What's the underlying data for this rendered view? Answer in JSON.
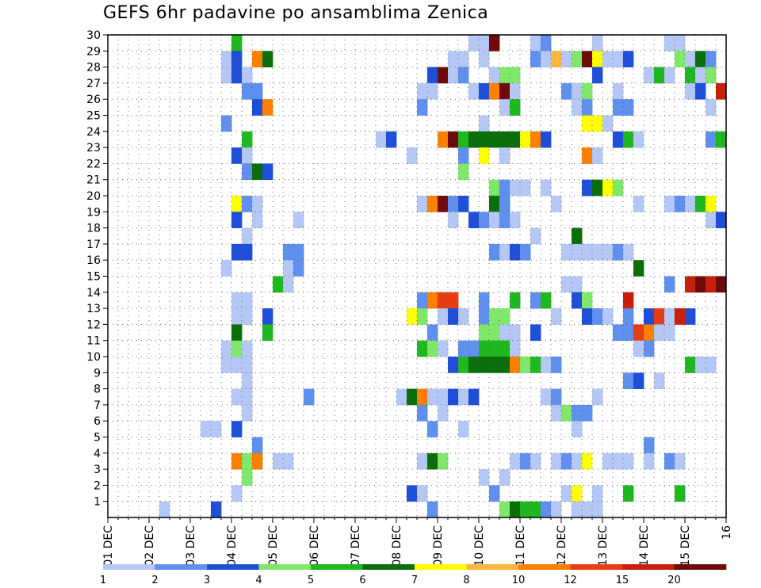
{
  "chart_data": {
    "type": "heatmap",
    "title": "GEFS 6hr padavine po ansamblima Zenica",
    "xlabel": "",
    "ylabel": "",
    "x_ticks": [
      "01 DEC",
      "02 DEC",
      "03 DEC",
      "04 DEC",
      "05 DEC",
      "06 DEC",
      "07 DEC",
      "08 DEC",
      "09 DEC",
      "10 DEC",
      "11 DEC",
      "12 DEC",
      "13 DEC",
      "14 DEC",
      "15 DEC",
      "16"
    ],
    "y_ticks": [
      "1",
      "2",
      "3",
      "4",
      "5",
      "6",
      "7",
      "8",
      "9",
      "10",
      "11",
      "12",
      "13",
      "14",
      "15",
      "16",
      "17",
      "18",
      "19",
      "20",
      "21",
      "22",
      "23",
      "24",
      "25",
      "26",
      "27",
      "28",
      "29",
      "30"
    ],
    "xlim": [
      0,
      60
    ],
    "ylim": [
      0,
      30
    ],
    "time_step_hours": 6,
    "grid": true,
    "legend": {
      "placement": "bottom",
      "labels": [
        "1",
        "2",
        "3",
        "4",
        "5",
        "6",
        "7",
        "8",
        "10",
        "12",
        "15",
        "20"
      ],
      "colors": [
        "#b4c7f5",
        "#6090ee",
        "#1f4fd8",
        "#7fe86a",
        "#1fb81f",
        "#0a6e0a",
        "#ffff00",
        "#ffb43c",
        "#ff7f00",
        "#e83c14",
        "#c81e0a",
        "#6e0a0a"
      ]
    },
    "cells": [
      [
        13,
        30,
        5
      ],
      [
        36,
        30,
        1
      ],
      [
        37,
        30,
        1
      ],
      [
        38,
        30,
        12
      ],
      [
        42,
        30,
        1
      ],
      [
        43,
        30,
        2
      ],
      [
        48,
        30,
        1
      ],
      [
        55,
        30,
        1
      ],
      [
        56,
        30,
        1
      ],
      [
        12,
        29,
        1
      ],
      [
        13,
        29,
        3
      ],
      [
        15,
        29,
        9
      ],
      [
        16,
        29,
        6
      ],
      [
        34,
        29,
        1
      ],
      [
        35,
        29,
        1
      ],
      [
        37,
        29,
        1
      ],
      [
        42,
        29,
        2
      ],
      [
        43,
        29,
        1
      ],
      [
        44,
        29,
        8
      ],
      [
        45,
        29,
        1
      ],
      [
        46,
        29,
        4
      ],
      [
        47,
        29,
        12
      ],
      [
        48,
        29,
        7
      ],
      [
        49,
        29,
        1
      ],
      [
        50,
        29,
        1
      ],
      [
        51,
        29,
        3
      ],
      [
        56,
        29,
        4
      ],
      [
        57,
        29,
        1
      ],
      [
        58,
        29,
        6
      ],
      [
        59,
        29,
        2
      ],
      [
        12,
        28,
        1
      ],
      [
        13,
        28,
        3
      ],
      [
        14,
        28,
        1
      ],
      [
        32,
        28,
        3
      ],
      [
        33,
        28,
        12
      ],
      [
        34,
        28,
        1
      ],
      [
        35,
        28,
        2
      ],
      [
        38,
        28,
        1
      ],
      [
        39,
        28,
        4
      ],
      [
        40,
        28,
        4
      ],
      [
        48,
        28,
        3
      ],
      [
        53,
        28,
        1
      ],
      [
        54,
        28,
        5
      ],
      [
        55,
        28,
        1
      ],
      [
        57,
        28,
        5
      ],
      [
        58,
        28,
        1
      ],
      [
        59,
        28,
        4
      ],
      [
        14,
        27,
        2
      ],
      [
        15,
        27,
        2
      ],
      [
        31,
        27,
        1
      ],
      [
        32,
        27,
        1
      ],
      [
        36,
        27,
        1
      ],
      [
        37,
        27,
        3
      ],
      [
        38,
        27,
        9
      ],
      [
        39,
        27,
        12
      ],
      [
        40,
        27,
        1
      ],
      [
        45,
        27,
        2
      ],
      [
        46,
        27,
        1
      ],
      [
        47,
        27,
        4
      ],
      [
        50,
        27,
        1
      ],
      [
        57,
        27,
        1
      ],
      [
        58,
        27,
        3
      ],
      [
        60,
        27,
        11
      ],
      [
        15,
        26,
        3
      ],
      [
        16,
        26,
        9
      ],
      [
        31,
        26,
        2
      ],
      [
        39,
        26,
        1
      ],
      [
        40,
        26,
        5
      ],
      [
        46,
        26,
        1
      ],
      [
        47,
        26,
        2
      ],
      [
        50,
        26,
        2
      ],
      [
        51,
        26,
        2
      ],
      [
        59,
        26,
        1
      ],
      [
        12,
        25,
        2
      ],
      [
        37,
        25,
        1
      ],
      [
        47,
        25,
        7
      ],
      [
        48,
        25,
        7
      ],
      [
        49,
        25,
        1
      ],
      [
        14,
        24,
        5
      ],
      [
        27,
        24,
        1
      ],
      [
        28,
        24,
        3
      ],
      [
        33,
        24,
        9
      ],
      [
        34,
        24,
        12
      ],
      [
        35,
        24,
        5
      ],
      [
        36,
        24,
        6
      ],
      [
        37,
        24,
        6
      ],
      [
        38,
        24,
        6
      ],
      [
        39,
        24,
        6
      ],
      [
        40,
        24,
        6
      ],
      [
        41,
        24,
        7
      ],
      [
        42,
        24,
        9
      ],
      [
        43,
        24,
        3
      ],
      [
        50,
        24,
        3
      ],
      [
        51,
        24,
        5
      ],
      [
        52,
        24,
        1
      ],
      [
        59,
        24,
        2
      ],
      [
        60,
        24,
        5
      ],
      [
        13,
        23,
        3
      ],
      [
        14,
        23,
        1
      ],
      [
        30,
        23,
        1
      ],
      [
        35,
        23,
        2
      ],
      [
        37,
        23,
        7
      ],
      [
        39,
        23,
        1
      ],
      [
        47,
        23,
        9
      ],
      [
        48,
        23,
        1
      ],
      [
        14,
        22,
        2
      ],
      [
        15,
        22,
        6
      ],
      [
        16,
        22,
        3
      ],
      [
        35,
        22,
        4
      ],
      [
        38,
        21,
        4
      ],
      [
        39,
        21,
        2
      ],
      [
        40,
        21,
        1
      ],
      [
        41,
        21,
        1
      ],
      [
        43,
        21,
        1
      ],
      [
        47,
        21,
        3
      ],
      [
        48,
        21,
        6
      ],
      [
        49,
        21,
        7
      ],
      [
        50,
        21,
        4
      ],
      [
        13,
        20,
        7
      ],
      [
        14,
        20,
        2
      ],
      [
        15,
        20,
        1
      ],
      [
        31,
        20,
        1
      ],
      [
        32,
        20,
        9
      ],
      [
        33,
        20,
        12
      ],
      [
        34,
        20,
        2
      ],
      [
        35,
        20,
        3
      ],
      [
        38,
        20,
        6
      ],
      [
        39,
        20,
        2
      ],
      [
        44,
        20,
        1
      ],
      [
        52,
        20,
        1
      ],
      [
        55,
        20,
        1
      ],
      [
        56,
        20,
        2
      ],
      [
        57,
        20,
        1
      ],
      [
        58,
        20,
        5
      ],
      [
        59,
        20,
        7
      ],
      [
        13,
        19,
        3
      ],
      [
        15,
        19,
        1
      ],
      [
        19,
        19,
        1
      ],
      [
        34,
        19,
        1
      ],
      [
        36,
        19,
        3
      ],
      [
        37,
        19,
        2
      ],
      [
        38,
        19,
        1
      ],
      [
        39,
        19,
        2
      ],
      [
        40,
        19,
        1
      ],
      [
        59,
        19,
        1
      ],
      [
        60,
        19,
        3
      ],
      [
        14,
        18,
        1
      ],
      [
        42,
        18,
        1
      ],
      [
        46,
        18,
        6
      ],
      [
        13,
        17,
        3
      ],
      [
        14,
        17,
        3
      ],
      [
        18,
        17,
        2
      ],
      [
        19,
        17,
        2
      ],
      [
        38,
        17,
        2
      ],
      [
        39,
        17,
        1
      ],
      [
        40,
        17,
        3
      ],
      [
        41,
        17,
        2
      ],
      [
        45,
        17,
        1
      ],
      [
        46,
        17,
        1
      ],
      [
        47,
        17,
        1
      ],
      [
        48,
        17,
        1
      ],
      [
        49,
        17,
        1
      ],
      [
        50,
        17,
        2
      ],
      [
        51,
        17,
        1
      ],
      [
        12,
        16,
        1
      ],
      [
        18,
        16,
        1
      ],
      [
        19,
        16,
        2
      ],
      [
        52,
        16,
        6
      ],
      [
        17,
        15,
        5
      ],
      [
        18,
        15,
        1
      ],
      [
        45,
        15,
        1
      ],
      [
        46,
        15,
        1
      ],
      [
        55,
        15,
        2
      ],
      [
        57,
        15,
        11
      ],
      [
        58,
        15,
        12
      ],
      [
        59,
        15,
        11
      ],
      [
        60,
        15,
        12
      ],
      [
        13,
        14,
        1
      ],
      [
        14,
        14,
        1
      ],
      [
        31,
        14,
        2
      ],
      [
        32,
        14,
        9
      ],
      [
        33,
        14,
        10
      ],
      [
        34,
        14,
        10
      ],
      [
        37,
        14,
        2
      ],
      [
        40,
        14,
        5
      ],
      [
        42,
        14,
        2
      ],
      [
        43,
        14,
        5
      ],
      [
        46,
        14,
        3
      ],
      [
        47,
        14,
        4
      ],
      [
        51,
        14,
        11
      ],
      [
        13,
        13,
        1
      ],
      [
        14,
        13,
        1
      ],
      [
        16,
        13,
        3
      ],
      [
        30,
        13,
        7
      ],
      [
        31,
        13,
        4
      ],
      [
        33,
        13,
        1
      ],
      [
        34,
        13,
        3
      ],
      [
        35,
        13,
        1
      ],
      [
        37,
        13,
        2
      ],
      [
        38,
        13,
        4
      ],
      [
        39,
        13,
        4
      ],
      [
        44,
        13,
        1
      ],
      [
        47,
        13,
        3
      ],
      [
        48,
        13,
        2
      ],
      [
        49,
        13,
        1
      ],
      [
        51,
        13,
        2
      ],
      [
        53,
        13,
        3
      ],
      [
        54,
        13,
        10
      ],
      [
        55,
        13,
        1
      ],
      [
        56,
        13,
        11
      ],
      [
        57,
        13,
        3
      ],
      [
        13,
        12,
        6
      ],
      [
        16,
        12,
        5
      ],
      [
        32,
        12,
        2
      ],
      [
        37,
        12,
        4
      ],
      [
        38,
        12,
        4
      ],
      [
        39,
        12,
        1
      ],
      [
        40,
        12,
        1
      ],
      [
        42,
        12,
        3
      ],
      [
        50,
        12,
        2
      ],
      [
        51,
        12,
        2
      ],
      [
        52,
        12,
        10
      ],
      [
        53,
        12,
        9
      ],
      [
        54,
        12,
        1
      ],
      [
        55,
        12,
        1
      ],
      [
        12,
        11,
        1
      ],
      [
        13,
        11,
        4
      ],
      [
        14,
        11,
        1
      ],
      [
        31,
        11,
        5
      ],
      [
        32,
        11,
        4
      ],
      [
        33,
        11,
        1
      ],
      [
        35,
        11,
        2
      ],
      [
        36,
        11,
        2
      ],
      [
        37,
        11,
        5
      ],
      [
        38,
        11,
        5
      ],
      [
        39,
        11,
        5
      ],
      [
        40,
        11,
        1
      ],
      [
        52,
        11,
        1
      ],
      [
        53,
        11,
        2
      ],
      [
        12,
        10,
        1
      ],
      [
        13,
        10,
        1
      ],
      [
        14,
        10,
        1
      ],
      [
        34,
        10,
        3
      ],
      [
        35,
        10,
        5
      ],
      [
        36,
        10,
        6
      ],
      [
        37,
        10,
        6
      ],
      [
        38,
        10,
        6
      ],
      [
        39,
        10,
        6
      ],
      [
        40,
        10,
        9
      ],
      [
        41,
        10,
        4
      ],
      [
        42,
        10,
        5
      ],
      [
        43,
        10,
        1
      ],
      [
        44,
        10,
        2
      ],
      [
        57,
        10,
        5
      ],
      [
        58,
        10,
        1
      ],
      [
        59,
        10,
        1
      ],
      [
        14,
        9,
        1
      ],
      [
        51,
        9,
        2
      ],
      [
        52,
        9,
        3
      ],
      [
        54,
        9,
        1
      ],
      [
        13,
        8,
        1
      ],
      [
        14,
        8,
        1
      ],
      [
        20,
        8,
        2
      ],
      [
        29,
        8,
        1
      ],
      [
        30,
        8,
        6
      ],
      [
        31,
        8,
        9
      ],
      [
        32,
        8,
        1
      ],
      [
        33,
        8,
        1
      ],
      [
        34,
        8,
        3
      ],
      [
        35,
        8,
        1
      ],
      [
        36,
        8,
        3
      ],
      [
        43,
        8,
        1
      ],
      [
        44,
        8,
        2
      ],
      [
        48,
        8,
        1
      ],
      [
        14,
        7,
        1
      ],
      [
        31,
        7,
        2
      ],
      [
        33,
        7,
        1
      ],
      [
        44,
        7,
        1
      ],
      [
        45,
        7,
        4
      ],
      [
        46,
        7,
        2
      ],
      [
        47,
        7,
        2
      ],
      [
        10,
        6,
        1
      ],
      [
        11,
        6,
        1
      ],
      [
        13,
        6,
        3
      ],
      [
        32,
        6,
        2
      ],
      [
        35,
        6,
        1
      ],
      [
        46,
        6,
        1
      ],
      [
        15,
        5,
        2
      ],
      [
        53,
        5,
        2
      ],
      [
        13,
        4,
        9
      ],
      [
        14,
        4,
        4
      ],
      [
        15,
        4,
        9
      ],
      [
        17,
        4,
        1
      ],
      [
        18,
        4,
        1
      ],
      [
        31,
        4,
        1
      ],
      [
        32,
        4,
        6
      ],
      [
        33,
        4,
        4
      ],
      [
        40,
        4,
        1
      ],
      [
        41,
        4,
        2
      ],
      [
        42,
        4,
        1
      ],
      [
        44,
        4,
        1
      ],
      [
        45,
        4,
        2
      ],
      [
        46,
        4,
        1
      ],
      [
        47,
        4,
        7
      ],
      [
        49,
        4,
        1
      ],
      [
        50,
        4,
        1
      ],
      [
        51,
        4,
        1
      ],
      [
        53,
        4,
        1
      ],
      [
        55,
        4,
        2
      ],
      [
        56,
        4,
        1
      ],
      [
        14,
        3,
        4
      ],
      [
        37,
        3,
        1
      ],
      [
        39,
        3,
        1
      ],
      [
        13,
        2,
        1
      ],
      [
        30,
        2,
        3
      ],
      [
        31,
        2,
        1
      ],
      [
        38,
        2,
        2
      ],
      [
        45,
        2,
        1
      ],
      [
        46,
        2,
        7
      ],
      [
        48,
        2,
        1
      ],
      [
        51,
        2,
        5
      ],
      [
        56,
        2,
        5
      ],
      [
        6,
        1,
        1
      ],
      [
        11,
        1,
        3
      ],
      [
        32,
        1,
        2
      ],
      [
        39,
        1,
        4
      ],
      [
        40,
        1,
        6
      ],
      [
        41,
        1,
        5
      ],
      [
        42,
        1,
        5
      ],
      [
        43,
        1,
        2
      ],
      [
        44,
        1,
        1
      ],
      [
        46,
        1,
        1
      ],
      [
        47,
        1,
        1
      ],
      [
        48,
        1,
        1
      ]
    ]
  }
}
